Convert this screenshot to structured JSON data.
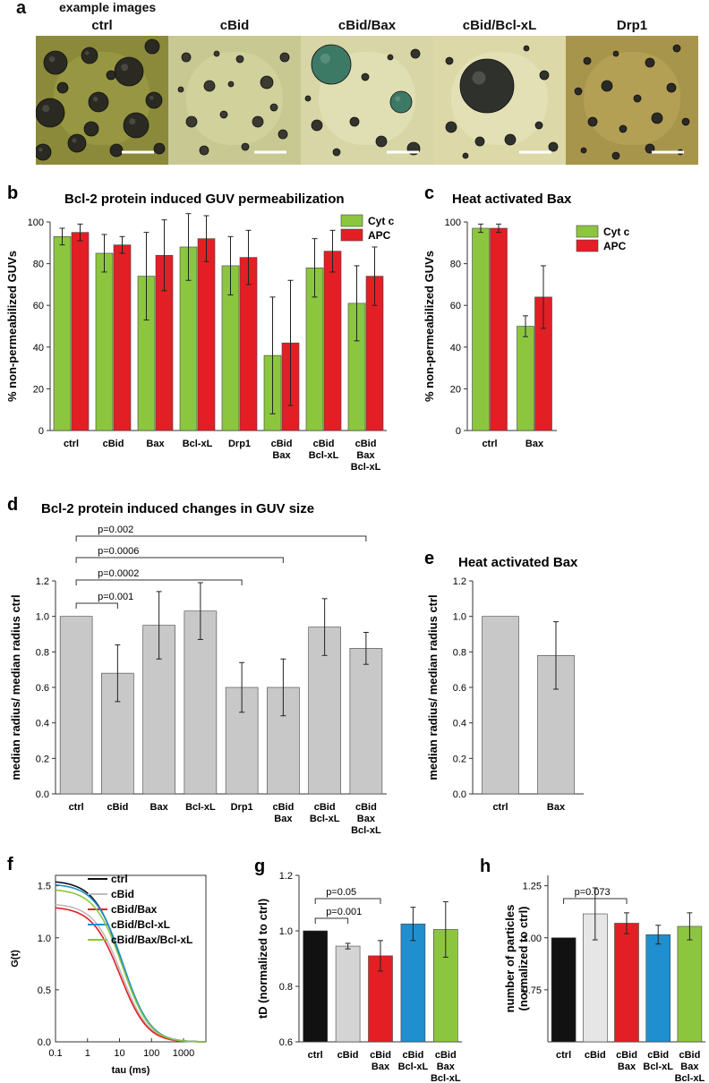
{
  "panel_letters": {
    "a": "a",
    "b": "b",
    "c": "c",
    "d": "d",
    "e": "e",
    "f": "f",
    "g": "g",
    "h": "h"
  },
  "panel_a": {
    "header": "example images",
    "images": [
      {
        "label": "ctrl",
        "bg": "#8a8a3a",
        "mid": "#a6a650",
        "spot": "#2a2a22"
      },
      {
        "label": "cBid",
        "bg": "#c8c893",
        "mid": "#dcdca8",
        "spot": "#3a3a33"
      },
      {
        "label": "cBid/Bax",
        "bg": "#d8d6a6",
        "mid": "#ecebc4",
        "spot": "#34342c"
      },
      {
        "label": "cBid/Bcl-xL",
        "bg": "#dcd8a8",
        "mid": "#ecebc8",
        "spot": "#2f322c"
      },
      {
        "label": "Drp1",
        "bg": "#a8954c",
        "mid": "#c0ac62",
        "spot": "#2b2a24"
      }
    ]
  },
  "chart_data": [
    {
      "id": "b",
      "type": "bar",
      "title": "Bcl-2 protein induced GUV permeabilization",
      "ylabel": "% non-permeabilized GUVs",
      "ylim": [
        0,
        100
      ],
      "yticks": [
        "0",
        "20",
        "40",
        "60",
        "80",
        "100"
      ],
      "categories": [
        [
          "ctrl"
        ],
        [
          "cBid"
        ],
        [
          "Bax"
        ],
        [
          "Bcl-xL"
        ],
        [
          "Drp1"
        ],
        [
          "cBid",
          "Bax"
        ],
        [
          "cBid",
          "Bcl-xL"
        ],
        [
          "cBid",
          "Bax",
          "Bcl-xL"
        ]
      ],
      "series": [
        {
          "name": "Cyt c",
          "color": "#8cc63f",
          "values": [
            93,
            85,
            74,
            88,
            79,
            36,
            78,
            61
          ],
          "errors": [
            4,
            9,
            21,
            16,
            14,
            28,
            14,
            18
          ]
        },
        {
          "name": "APC",
          "color": "#e41e25",
          "values": [
            95,
            89,
            84,
            92,
            83,
            42,
            86,
            74
          ],
          "errors": [
            4,
            4,
            17,
            11,
            13,
            30,
            10,
            14
          ]
        }
      ]
    },
    {
      "id": "c",
      "type": "bar",
      "title": "Heat activated Bax",
      "ylabel": "% non-permeabilized GUVs",
      "ylim": [
        0,
        100
      ],
      "yticks": [
        "0",
        "20",
        "40",
        "60",
        "80",
        "100"
      ],
      "categories": [
        [
          "ctrl"
        ],
        [
          "Bax"
        ]
      ],
      "series": [
        {
          "name": "Cyt c",
          "color": "#8cc63f",
          "values": [
            97,
            50
          ],
          "errors": [
            2,
            5
          ]
        },
        {
          "name": "APC",
          "color": "#e41e25",
          "values": [
            97,
            64
          ],
          "errors": [
            2,
            15
          ]
        }
      ]
    },
    {
      "id": "d",
      "type": "bar",
      "title": "Bcl-2 protein induced changes in GUV size",
      "ylabel": "median radius/ median radius ctrl",
      "ylim": [
        0,
        1.2
      ],
      "yticks": [
        "0.0",
        "0.2",
        "0.4",
        "0.6",
        "0.8",
        "1.0",
        "1.2"
      ],
      "categories": [
        [
          "ctrl"
        ],
        [
          "cBid"
        ],
        [
          "Bax"
        ],
        [
          "Bcl-xL"
        ],
        [
          "Drp1"
        ],
        [
          "cBid",
          "Bax"
        ],
        [
          "cBid",
          "Bcl-xL"
        ],
        [
          "cBid",
          "Bax",
          "Bcl-xL"
        ]
      ],
      "series": [
        {
          "name": "ratio",
          "color": "#c8c8c8",
          "values": [
            1.0,
            0.68,
            0.95,
            1.03,
            0.6,
            0.6,
            0.94,
            0.82
          ],
          "errors": [
            0,
            0.16,
            0.19,
            0.16,
            0.14,
            0.16,
            0.16,
            0.09
          ]
        }
      ],
      "annotations": [
        {
          "text": "p=0.002",
          "from": 0,
          "to": 7
        },
        {
          "text": "p=0.0006",
          "from": 0,
          "to": 5
        },
        {
          "text": "p=0.0002",
          "from": 0,
          "to": 4
        },
        {
          "text": "p=0.001",
          "from": 0,
          "to": 1
        }
      ]
    },
    {
      "id": "e",
      "type": "bar",
      "title": "Heat activated Bax",
      "ylabel": "median radius/ median radius ctrl",
      "ylim": [
        0,
        1.2
      ],
      "yticks": [
        "0.0",
        "0.2",
        "0.4",
        "0.6",
        "0.8",
        "1.0",
        "1.2"
      ],
      "categories": [
        [
          "ctrl"
        ],
        [
          "Bax"
        ]
      ],
      "series": [
        {
          "name": "ratio",
          "color": "#c8c8c8",
          "values": [
            1.0,
            0.78
          ],
          "errors": [
            0,
            0.19
          ]
        }
      ]
    },
    {
      "id": "f",
      "type": "line",
      "ylabel": "G(t)",
      "xlabel": "tau (ms)",
      "xscale": "log",
      "xlim": [
        0.1,
        5000
      ],
      "ylim": [
        0,
        1.6
      ],
      "xticks": [
        {
          "v": 0.1,
          "t": "0.1"
        },
        {
          "v": 1,
          "t": "1"
        },
        {
          "v": 10,
          "t": "10"
        },
        {
          "v": 100,
          "t": "100"
        },
        {
          "v": 1000,
          "t": "1000"
        }
      ],
      "yticks": [
        {
          "v": 0,
          "t": "0.0"
        },
        {
          "v": 0.5,
          "t": "0.5"
        },
        {
          "v": 1.0,
          "t": "1.0"
        },
        {
          "v": 1.5,
          "t": "1.5"
        }
      ],
      "series": [
        {
          "name": "ctrl",
          "color": "#111111",
          "g0": 1.55,
          "td": 12,
          "s": 5
        },
        {
          "name": "cBid",
          "color": "#bbbbbb",
          "g0": 1.33,
          "td": 11.5,
          "s": 5
        },
        {
          "name": "cBid/Bax",
          "color": "#e41e25",
          "g0": 1.3,
          "td": 10.5,
          "s": 5
        },
        {
          "name": "cBid/Bcl-xL",
          "color": "#1f8fd0",
          "g0": 1.52,
          "td": 13,
          "s": 5
        },
        {
          "name": "cBid/Bax/Bcl-xL",
          "color": "#8cc63f",
          "g0": 1.47,
          "td": 12.5,
          "s": 5
        }
      ]
    },
    {
      "id": "g",
      "type": "bar",
      "ylabel": "tD (normalized to ctrl)",
      "ylim": [
        0.6,
        1.2
      ],
      "yticks": [
        "0.6",
        "0.8",
        "1.0",
        "1.2"
      ],
      "categories": [
        [
          "ctrl"
        ],
        [
          "cBid"
        ],
        [
          "cBid",
          "Bax"
        ],
        [
          "cBid",
          "Bcl-xL"
        ],
        [
          "cBid",
          "Bax",
          "Bcl-xL"
        ]
      ],
      "colors": [
        "#111111",
        "#d4d4d4",
        "#e41e25",
        "#1f8fd0",
        "#8cc63f"
      ],
      "values": [
        1.0,
        0.945,
        0.91,
        1.025,
        1.005
      ],
      "errors": [
        0,
        0.01,
        0.055,
        0.06,
        0.1
      ],
      "annotations": [
        {
          "text": "p=0.05",
          "from": 0,
          "to": 2
        },
        {
          "text": "p=0.001",
          "from": 0,
          "to": 1
        }
      ]
    },
    {
      "id": "h",
      "type": "bar",
      "ylabel": "number of particles (normalized to ctrl)",
      "ylim": [
        0.5,
        1.3
      ],
      "yticks": [
        "0.75",
        "1.00",
        "1.25"
      ],
      "ytickvals": [
        0.75,
        1.0,
        1.25
      ],
      "categories": [
        [
          "ctrl"
        ],
        [
          "cBid"
        ],
        [
          "cBid",
          "Bax"
        ],
        [
          "cBid",
          "Bcl-xL"
        ],
        [
          "cBid",
          "Bax",
          "Bcl-xL"
        ]
      ],
      "colors": [
        "#111111",
        "#e6e6e6",
        "#e41e25",
        "#1f8fd0",
        "#8cc63f"
      ],
      "values": [
        1.0,
        1.115,
        1.07,
        1.015,
        1.055
      ],
      "errors": [
        0,
        0.125,
        0.05,
        0.045,
        0.065
      ],
      "annotations": [
        {
          "text": "p=0.073",
          "from": 0,
          "to": 2
        }
      ]
    }
  ]
}
